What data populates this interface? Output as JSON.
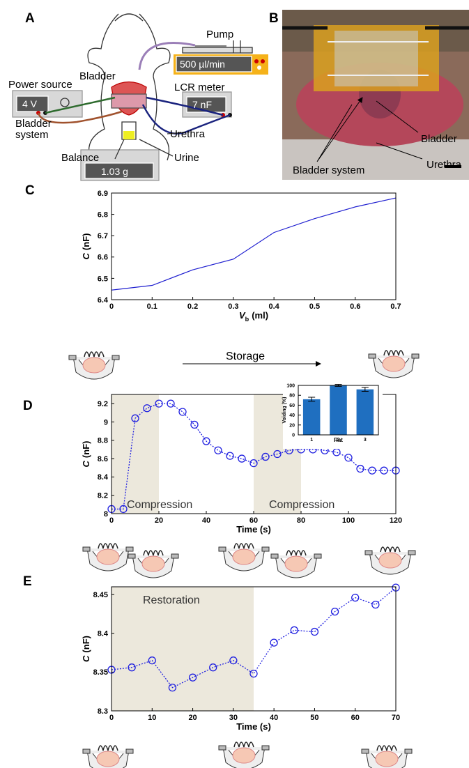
{
  "figure": {
    "panel_labels": [
      "A",
      "B",
      "C",
      "D",
      "E"
    ]
  },
  "diagram_A": {
    "pump": "Pump",
    "flow_rate": "500 µl/min",
    "bladder": "Bladder",
    "power_source": "Power source",
    "voltage": "4 V",
    "lcr_meter": "LCR meter",
    "capacitance": "7 nF",
    "bladder_system": "Bladder system",
    "urethra": "Urethra",
    "urine": "Urine",
    "balance": "Balance",
    "mass": "1.03 g"
  },
  "photo_B": {
    "bladder": "Bladder",
    "urethra": "Urethra",
    "bladder_system": "Bladder system"
  },
  "chart_data": [
    {
      "type": "line",
      "color": "#1f1fd0",
      "x": [
        0,
        0.1,
        0.2,
        0.3,
        0.4,
        0.5,
        0.6,
        0.7
      ],
      "values": [
        6.445,
        6.467,
        6.54,
        6.59,
        6.715,
        6.78,
        6.835,
        6.877
      ],
      "xlim": [
        0,
        0.7
      ],
      "xticks": [
        0,
        0.1,
        0.2,
        0.3,
        0.4,
        0.5,
        0.6,
        0.7
      ],
      "ylim": [
        6.4,
        6.9
      ],
      "yticks": [
        6.4,
        6.5,
        6.6,
        6.7,
        6.8,
        6.9
      ],
      "y_label": {
        "symbol": "C",
        "unit": "(nF)"
      },
      "x_label": {
        "symbol": "V",
        "subscript": "b",
        "unit": "(ml)"
      },
      "annotation": "Storage"
    },
    {
      "type": "line",
      "marker": "circle",
      "color": "#1f1fe0",
      "x": [
        0,
        5,
        10,
        15,
        20,
        25,
        30,
        35,
        40,
        45,
        50,
        55,
        60,
        65,
        70,
        75,
        80,
        85,
        90,
        95,
        100,
        105,
        110,
        115,
        120
      ],
      "values": [
        8.05,
        8.05,
        9.04,
        9.15,
        9.2,
        9.2,
        9.11,
        8.97,
        8.79,
        8.69,
        8.63,
        8.6,
        8.55,
        8.62,
        8.65,
        8.69,
        8.7,
        8.7,
        8.69,
        8.67,
        8.61,
        8.49,
        8.47,
        8.47,
        8.47
      ],
      "xlim": [
        0,
        120
      ],
      "xticks": [
        0,
        20,
        40,
        60,
        80,
        100,
        120
      ],
      "ylim": [
        8,
        9.3
      ],
      "yticks": [
        8,
        8.2,
        8.4,
        8.6,
        8.8,
        9,
        9.2
      ],
      "y_label": {
        "symbol": "C",
        "unit": "(nF)"
      },
      "x_label": {
        "text": "Time (s)"
      },
      "shaded": [
        {
          "from": 0,
          "to": 20,
          "label": "Compression"
        },
        {
          "from": 60,
          "to": 80,
          "label": "Compression"
        }
      ]
    },
    {
      "type": "bar",
      "color": "#1f6fc0",
      "categories": [
        "1",
        "2",
        "3"
      ],
      "values": [
        72,
        100,
        92
      ],
      "errors": [
        4,
        2,
        4
      ],
      "ylim": [
        0,
        100
      ],
      "yticks": [
        0,
        20,
        40,
        60,
        80,
        100
      ],
      "y_label": {
        "text": "Voiding (%)"
      },
      "x_label": {
        "text": "Rat"
      }
    },
    {
      "type": "line",
      "marker": "circle",
      "color": "#1f1fe0",
      "x": [
        0,
        5,
        10,
        15,
        20,
        25,
        30,
        35,
        40,
        45,
        50,
        55,
        60,
        65,
        70
      ],
      "values": [
        8.353,
        8.356,
        8.365,
        8.33,
        8.343,
        8.356,
        8.365,
        8.348,
        8.388,
        8.404,
        8.402,
        8.428,
        8.446,
        8.437,
        8.459
      ],
      "xlim": [
        0,
        70
      ],
      "xticks": [
        0,
        10,
        20,
        30,
        40,
        50,
        60,
        70
      ],
      "ylim": [
        8.3,
        8.46
      ],
      "yticks": [
        8.3,
        8.35,
        8.4,
        8.45
      ],
      "y_label": {
        "symbol": "C",
        "unit": "(nF)"
      },
      "x_label": {
        "text": "Time (s)"
      },
      "shaded": [
        {
          "from": 0,
          "to": 35,
          "label": "Restoration"
        }
      ]
    }
  ]
}
